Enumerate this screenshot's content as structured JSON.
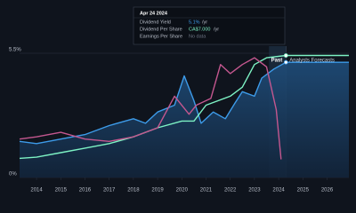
{
  "tooltip": {
    "date": "Apr 24 2024",
    "rows": [
      {
        "value": "5.1%",
        "unit": "/yr"
      },
      {
        "value": "CA$7.000",
        "unit": "/yr"
      },
      {
        "value": "No data"
      }
    ]
  },
  "chart_data": {
    "type": "line",
    "xlim": [
      2013.3,
      2026.9
    ],
    "ylim": [
      0,
      5.5
    ],
    "yticks": [
      {
        "value": 5.5,
        "label": "5.5%"
      },
      {
        "value": 0,
        "label": "0%"
      }
    ],
    "xticks": [
      2014,
      2015,
      2016,
      2017,
      2018,
      2019,
      2020,
      2021,
      2022,
      2023,
      2024,
      2025,
      2026
    ],
    "past_region": [
      2023.6,
      2024.3
    ],
    "annotations": [
      "Past",
      "Analysts Forecasts"
    ],
    "series": [
      {
        "name": "Dividend Yield",
        "color": "#3d9be9",
        "area": true,
        "x": [
          2013.3,
          2014,
          2015,
          2016,
          2017,
          2018,
          2018.5,
          2019,
          2019.7,
          2020.1,
          2020.5,
          2020.8,
          2021.3,
          2021.8,
          2022.2,
          2022.5,
          2023,
          2023.3,
          2023.8,
          2024.3,
          2026.9
        ],
        "values": [
          1.6,
          1.5,
          1.7,
          1.9,
          2.3,
          2.6,
          2.4,
          2.9,
          3.2,
          4.5,
          3.4,
          2.4,
          2.9,
          2.6,
          3.3,
          3.8,
          3.6,
          4.4,
          4.8,
          5.1,
          5.1
        ]
      },
      {
        "name": "Dividend Per Share",
        "color": "#7df2c4",
        "x": [
          2013.3,
          2014,
          2015,
          2016,
          2017,
          2018,
          2019,
          2020,
          2020.5,
          2021,
          2022,
          2022.5,
          2023,
          2023.5,
          2024.3,
          2026.9
        ],
        "values": [
          0.85,
          0.9,
          1.1,
          1.3,
          1.5,
          1.8,
          2.2,
          2.5,
          2.5,
          3.2,
          3.6,
          4.0,
          5.0,
          5.3,
          5.4,
          5.4
        ]
      },
      {
        "name": "Earnings Per Share",
        "color": "#c4578f",
        "x": [
          2013.3,
          2014,
          2015,
          2016,
          2017,
          2018,
          2019,
          2019.7,
          2020.3,
          2020.6,
          2021.2,
          2021.6,
          2022,
          2022.5,
          2023,
          2023.5,
          2023.9,
          2024.1
        ],
        "values": [
          1.7,
          1.8,
          2.0,
          1.7,
          1.6,
          1.8,
          2.2,
          3.6,
          2.8,
          3.2,
          3.5,
          5.0,
          4.6,
          5.0,
          5.3,
          4.9,
          3.0,
          0.8
        ]
      }
    ]
  }
}
